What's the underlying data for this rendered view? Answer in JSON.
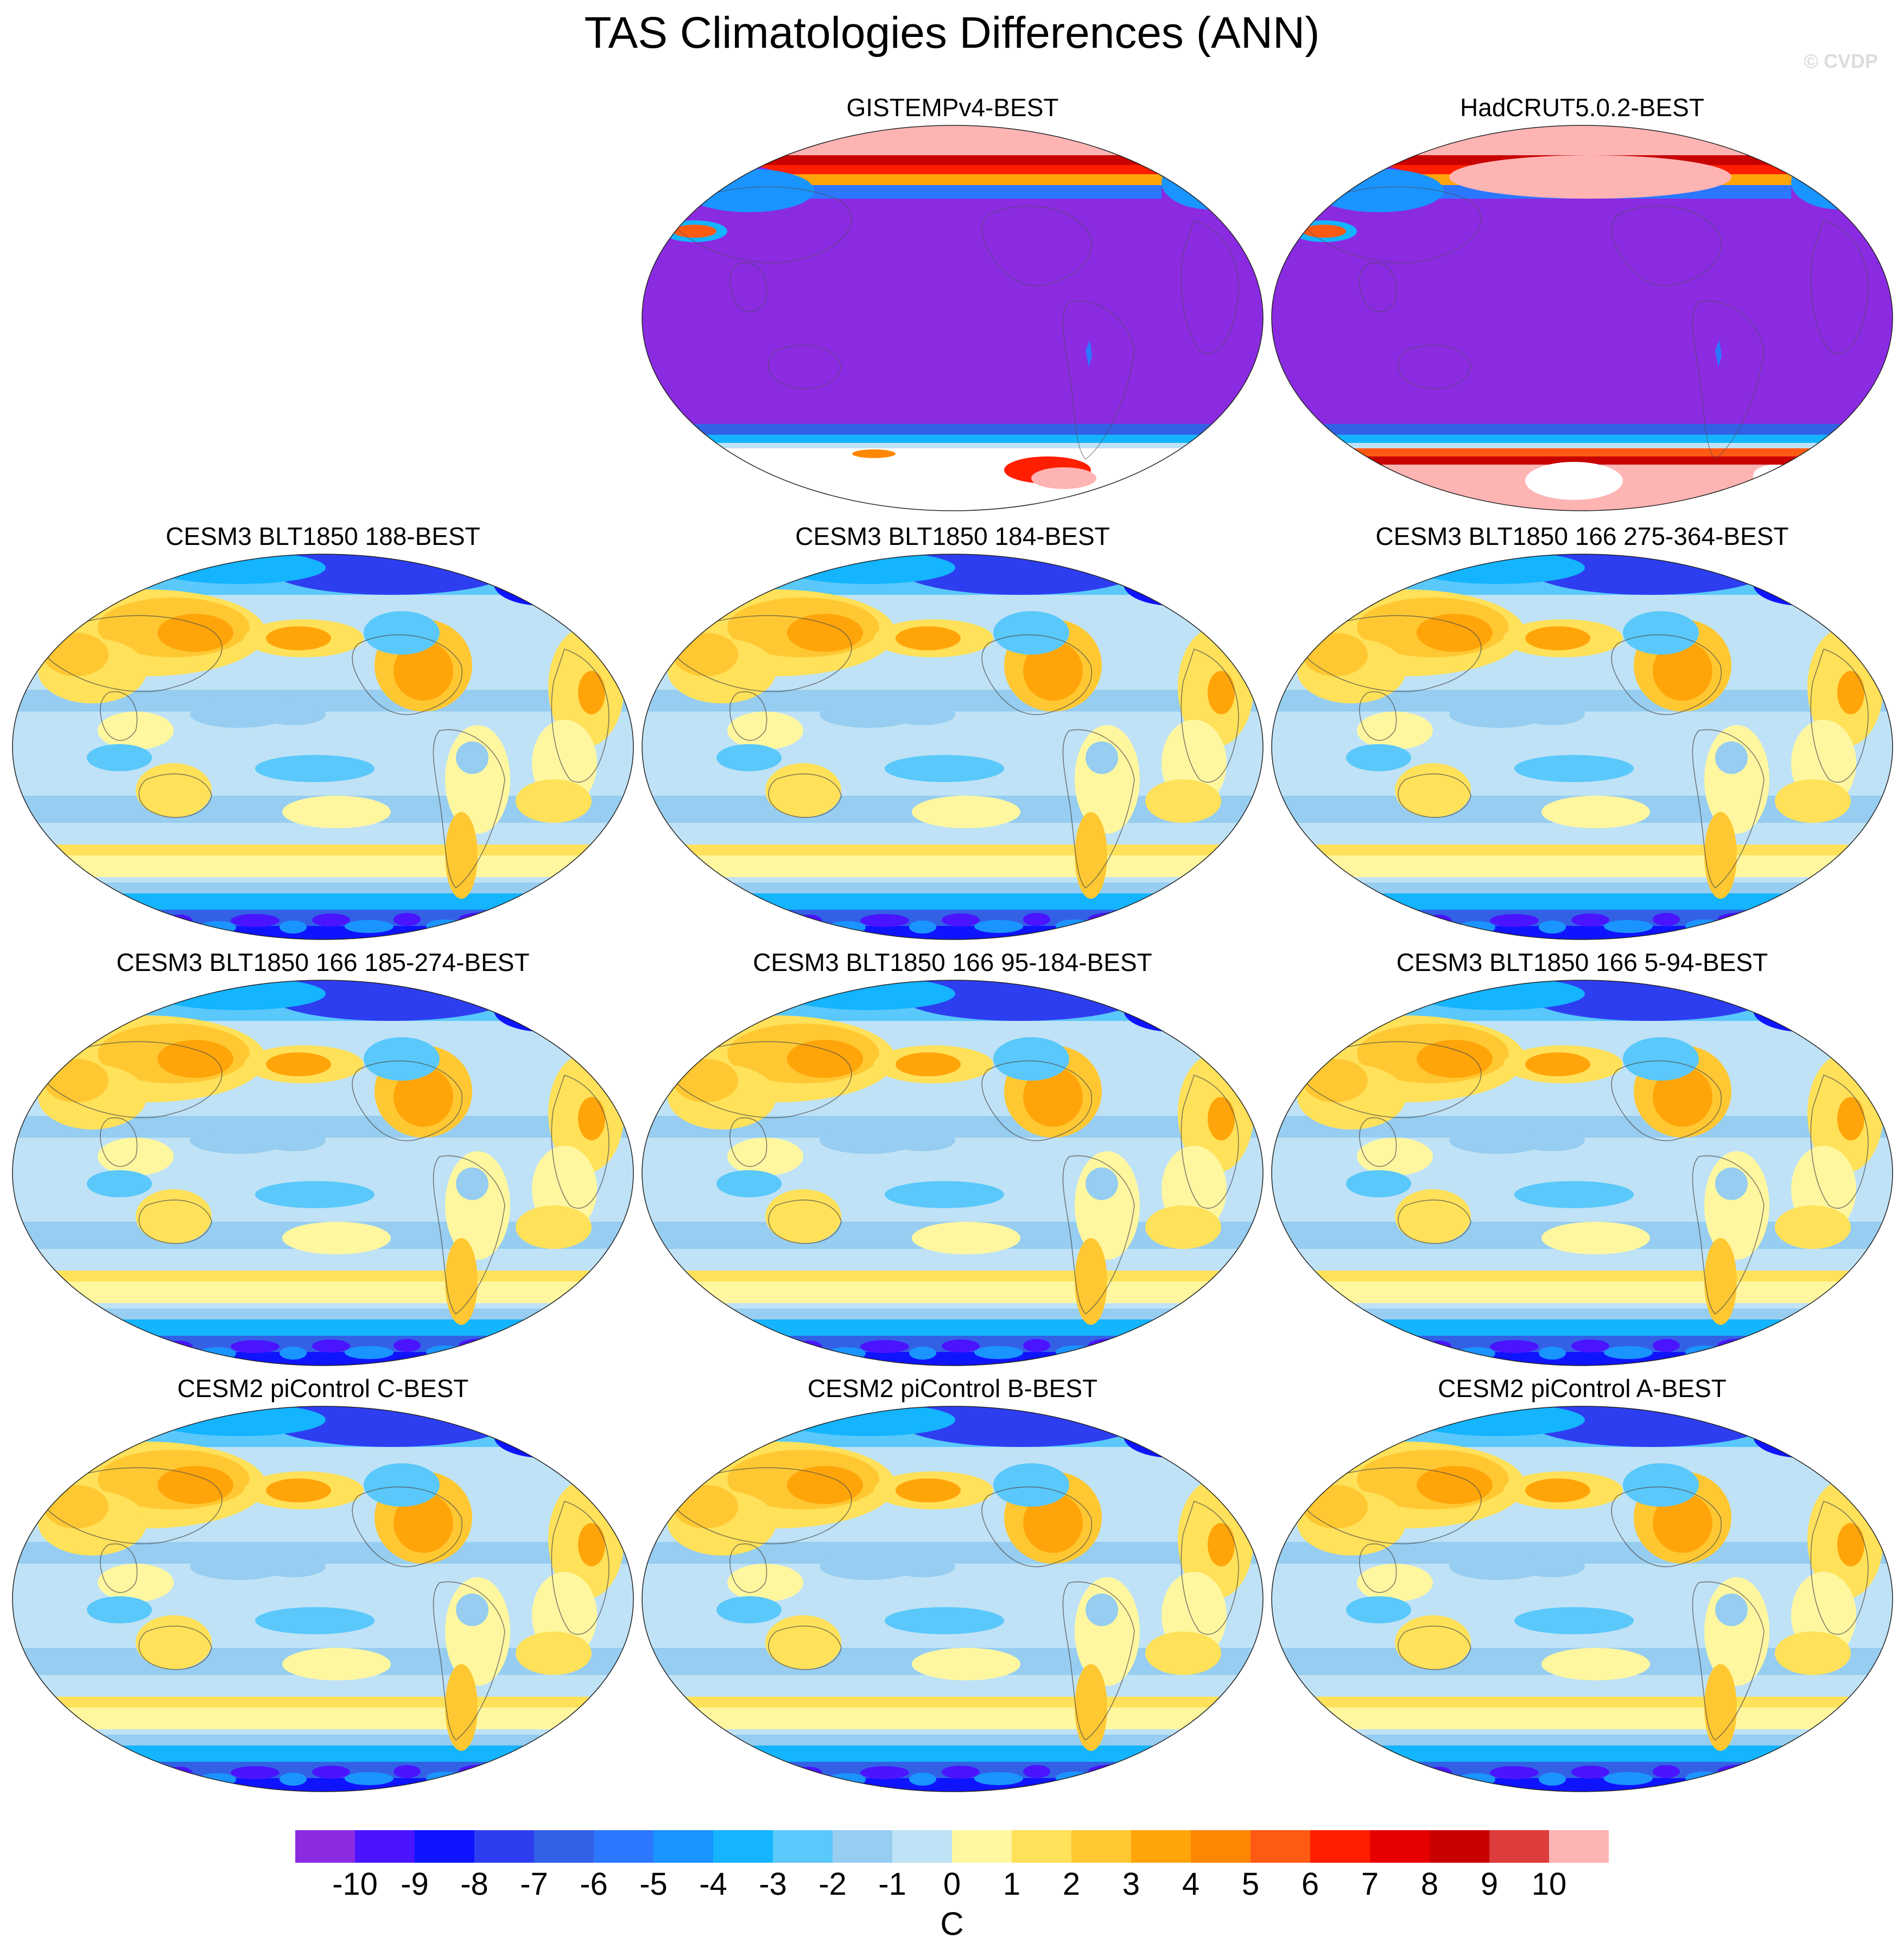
{
  "title": "TAS Climatologies Differences (ANN)",
  "watermark": "© CVDP",
  "panels": [
    {
      "title": "GISTEMPv4-BEST",
      "kind": "obs-gis"
    },
    {
      "title": "HadCRUT5.0.2-BEST",
      "kind": "obs-had"
    },
    {
      "title": "CESM3 BLT1850 188-BEST",
      "kind": "model"
    },
    {
      "title": "CESM3 BLT1850 184-BEST",
      "kind": "model"
    },
    {
      "title": "CESM3 BLT1850 166 275-364-BEST",
      "kind": "model"
    },
    {
      "title": "CESM3 BLT1850 166 185-274-BEST",
      "kind": "model"
    },
    {
      "title": "CESM3 BLT1850 166 95-184-BEST",
      "kind": "model"
    },
    {
      "title": "CESM3 BLT1850 166 5-94-BEST",
      "kind": "model"
    },
    {
      "title": "CESM2 piControl C-BEST",
      "kind": "model"
    },
    {
      "title": "CESM2 piControl B-BEST",
      "kind": "model"
    },
    {
      "title": "CESM2 piControl A-BEST",
      "kind": "model"
    }
  ],
  "colorbar": {
    "unit": "C",
    "levels": [
      "-10",
      "-9",
      "-8",
      "-7",
      "-6",
      "-5",
      "-4",
      "-3",
      "-2",
      "-1",
      "0",
      "1",
      "2",
      "3",
      "4",
      "5",
      "6",
      "7",
      "8",
      "9",
      "10"
    ],
    "colors": [
      "#8a2be2",
      "#4a14ff",
      "#0f14ff",
      "#2d3ef0",
      "#3361e6",
      "#2b78ff",
      "#1a94ff",
      "#14b4ff",
      "#5ac8fa",
      "#96cdf0",
      "#bfe2f6",
      "#fff7a0",
      "#ffe15a",
      "#ffc832",
      "#ffa50a",
      "#ff8700",
      "#ff5a14",
      "#ff1e00",
      "#e60000",
      "#c80000",
      "#dc3c3c",
      "#ffb4b4"
    ]
  }
}
